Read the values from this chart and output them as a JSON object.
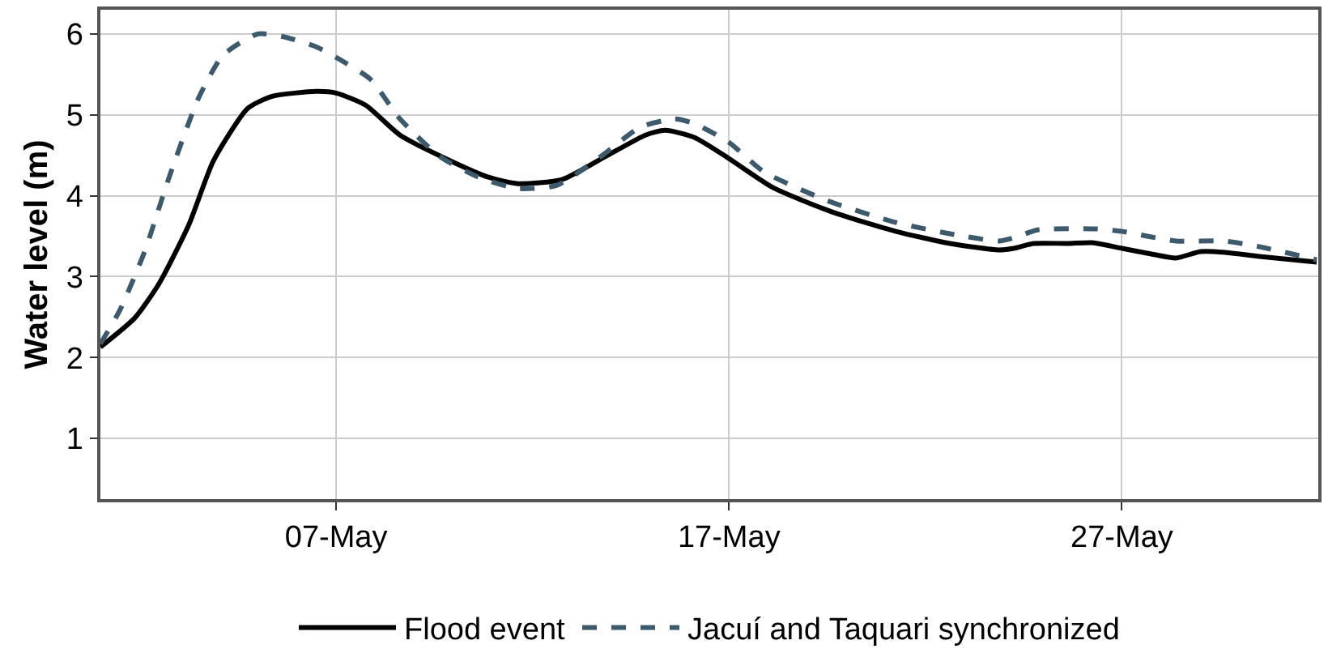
{
  "chart_data": {
    "type": "line",
    "ylabel": "Water level (m)",
    "xlim": [
      "--05-01",
      "--06-01"
    ],
    "ylim": [
      0.25,
      6.3
    ],
    "xticks": [
      {
        "value": "--05-07",
        "label": "07-May"
      },
      {
        "value": "--05-17",
        "label": "17-May"
      },
      {
        "value": "--05-27",
        "label": "27-May"
      }
    ],
    "yticks": [
      1,
      2,
      3,
      4,
      5,
      6
    ],
    "grid": true,
    "legend": "bottom",
    "marker": "none",
    "series": [
      {
        "name": "Flood event",
        "color": "#000000",
        "line_style": "solid",
        "x": [
          "--05-01T00:00",
          "--05-01T21:00",
          "--05-02T12:00",
          "--05-03T06:00",
          "--05-03T21:00",
          "--05-04T18:00",
          "--05-05T09:00",
          "--05-06T12:00",
          "--05-07T00:00",
          "--05-07T18:00",
          "--05-08T15:00",
          "--05-09T21:00",
          "--05-10T21:00",
          "--05-11T15:00",
          "--05-12T18:00",
          "--05-13T21:00",
          "--05-14T21:00",
          "--05-15T09:00",
          "--05-16T03:00",
          "--05-17T00:00",
          "--05-18T03:00",
          "--05-19T15:00",
          "--05-21T06:00",
          "--05-22T15:00",
          "--05-23T21:00",
          "--05-24T06:00",
          "--05-24T18:00",
          "--05-25T15:00",
          "--05-26T06:00",
          "--05-27T00:00",
          "--05-27T18:00",
          "--05-28T09:00",
          "--05-29T00:00",
          "--05-29T15:00",
          "--05-30T12:00",
          "--05-31T23:00"
        ],
        "values": [
          2.13,
          2.49,
          2.92,
          3.64,
          4.43,
          5.08,
          5.23,
          5.29,
          5.27,
          5.12,
          4.75,
          4.44,
          4.23,
          4.15,
          4.2,
          4.49,
          4.75,
          4.81,
          4.72,
          4.46,
          4.1,
          3.8,
          3.56,
          3.41,
          3.33,
          3.35,
          3.41,
          3.41,
          3.42,
          3.35,
          3.28,
          3.23,
          3.31,
          3.3,
          3.25,
          3.18
        ]
      },
      {
        "name": "Jacuí and Taquari synchronized",
        "color": "#3d5a6c",
        "line_style": "dashed",
        "x": [
          "--05-01T00:00",
          "--05-01T12:00",
          "--05-02T03:00",
          "--05-02T18:00",
          "--05-03T12:00",
          "--05-04T03:00",
          "--05-05T00:00",
          "--05-05T15:00",
          "--05-06T12:00",
          "--05-07T00:00",
          "--05-07T21:00",
          "--05-08T15:00",
          "--05-09T15:00",
          "--05-10T15:00",
          "--05-11T15:00",
          "--05-12T15:00",
          "--05-13T18:00",
          "--05-14T18:00",
          "--05-15T15:00",
          "--05-16T03:00",
          "--05-17T00:00",
          "--05-17T21:00",
          "--05-19T12:00",
          "--05-21T06:00",
          "--05-22T15:00",
          "--05-23T21:00",
          "--05-24T06:00",
          "--05-24T21:00",
          "--05-26T09:00",
          "--05-27T00:00",
          "--05-28T09:00",
          "--05-29T15:00",
          "--05-30T12:00",
          "--05-31T23:00"
        ],
        "values": [
          2.17,
          2.59,
          3.31,
          4.23,
          5.21,
          5.74,
          6.0,
          5.97,
          5.84,
          5.71,
          5.44,
          4.95,
          4.49,
          4.23,
          4.09,
          4.13,
          4.49,
          4.85,
          4.95,
          4.89,
          4.66,
          4.3,
          3.94,
          3.67,
          3.53,
          3.44,
          3.48,
          3.58,
          3.59,
          3.56,
          3.44,
          3.44,
          3.37,
          3.21
        ]
      }
    ]
  }
}
